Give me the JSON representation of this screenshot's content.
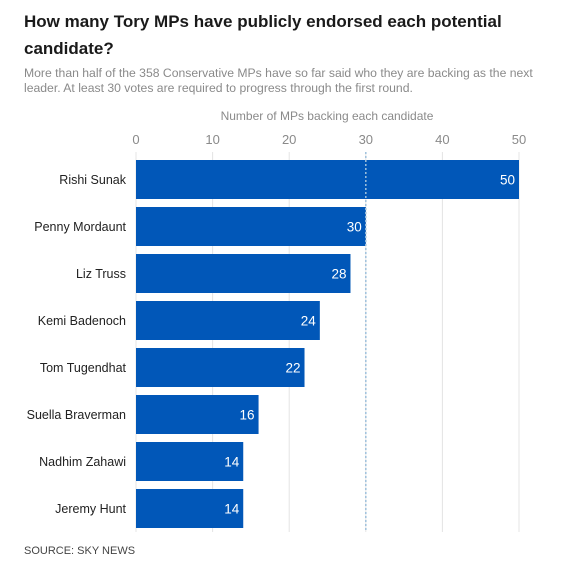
{
  "title": "How many Tory MPs have publicly endorsed each potential candidate?",
  "subtitle": "More than half of the 358 Conservative MPs have so far said who they are backing as the next leader. At least 30 votes are required to progress through the first round.",
  "source": "SOURCE: SKY NEWS",
  "colors": {
    "bar": "#0157B8",
    "grid": "#e4e4e4",
    "threshold": "#9fc1dc",
    "axis_text": "#8a8a8a",
    "label_text": "#222222",
    "value_text": "#ffffff"
  },
  "chart_data": {
    "type": "bar",
    "orientation": "horizontal",
    "xlabel": "Number of MPs backing each candidate",
    "xlim": [
      0,
      50
    ],
    "xticks": [
      0,
      10,
      20,
      30,
      40,
      50
    ],
    "threshold": 30,
    "grid": true,
    "categories": [
      "Rishi Sunak",
      "Penny Mordaunt",
      "Liz Truss",
      "Kemi Badenoch",
      "Tom Tugendhat",
      "Suella Braverman",
      "Nadhim Zahawi",
      "Jeremy Hunt"
    ],
    "values": [
      50,
      30,
      28,
      24,
      22,
      16,
      14,
      14
    ]
  }
}
